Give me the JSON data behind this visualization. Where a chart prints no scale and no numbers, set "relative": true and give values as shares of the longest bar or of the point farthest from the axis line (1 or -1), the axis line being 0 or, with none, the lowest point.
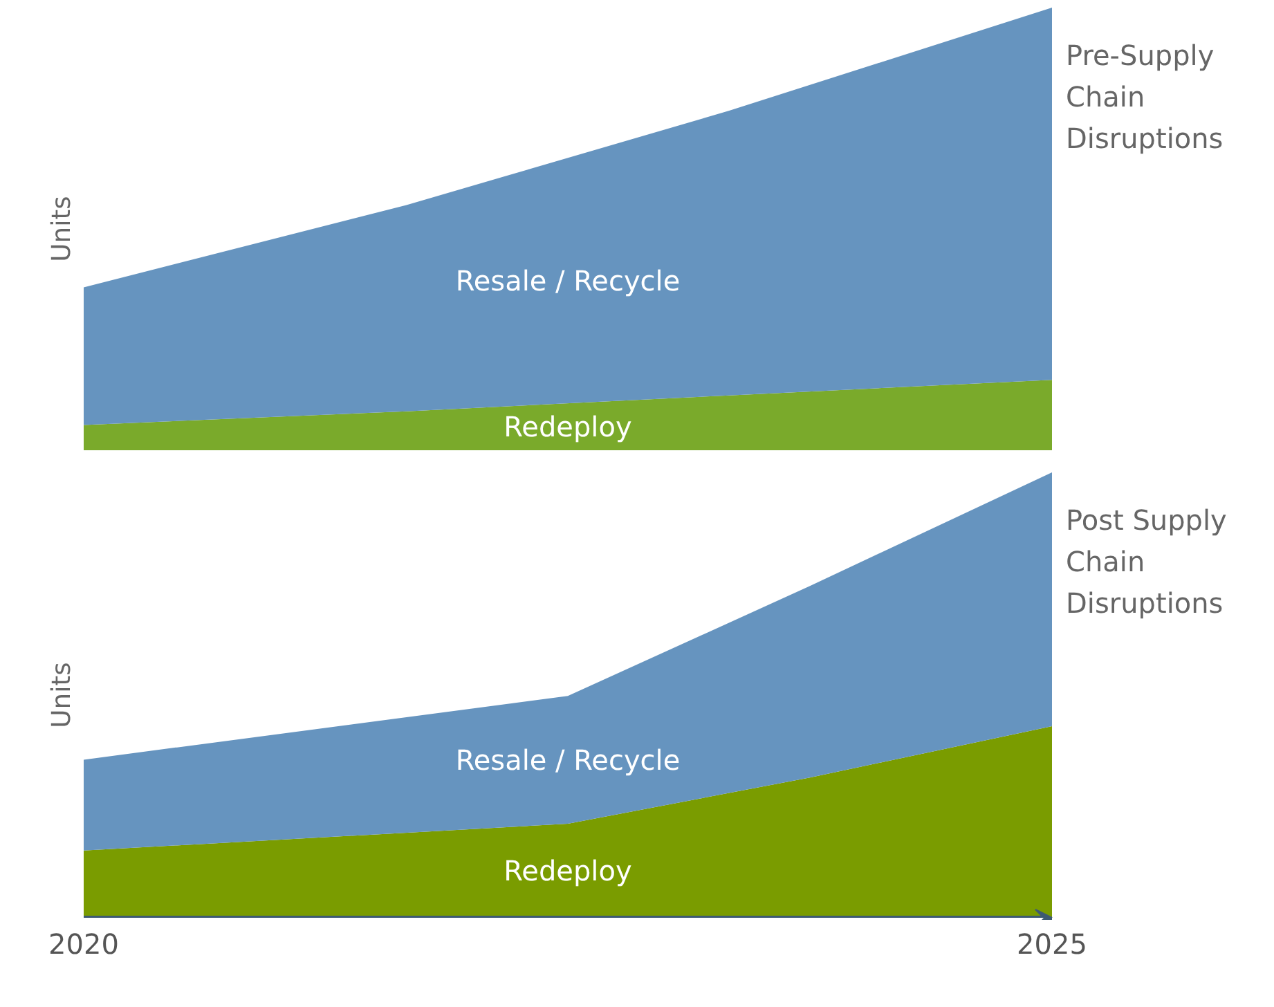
{
  "chart_data": [
    {
      "type": "area",
      "title": "Pre-Supply Chain Disruptions",
      "ylabel": "Units",
      "relative": true,
      "stacked": true,
      "tick_labels": false,
      "categories": [
        null,
        null,
        null,
        null
      ],
      "series": [
        {
          "name": "Redeploy",
          "color": "#7aaa2b",
          "values": [
            0.057,
            0.088,
            0.124,
            0.159
          ]
        },
        {
          "name": "Resale / Recycle",
          "color": "#6694bf",
          "values": [
            0.311,
            0.466,
            0.643,
            0.841
          ]
        }
      ]
    },
    {
      "type": "area",
      "title": "Post Supply Chain Disruptions",
      "ylabel": "Units",
      "relative": true,
      "stacked": true,
      "tick_labels": "x",
      "x": [
        2020,
        2022.5,
        2023.75,
        2025
      ],
      "xlim": [
        2020,
        2025
      ],
      "xticks": [
        2020,
        2025
      ],
      "series": [
        {
          "name": "Redeploy",
          "color": "#7a9c00",
          "values": [
            0.151,
            0.211,
            0.315,
            0.43
          ]
        },
        {
          "name": "Resale / Recycle",
          "color": "#6694bf",
          "values": [
            0.204,
            0.287,
            0.43,
            0.57
          ]
        }
      ]
    }
  ]
}
